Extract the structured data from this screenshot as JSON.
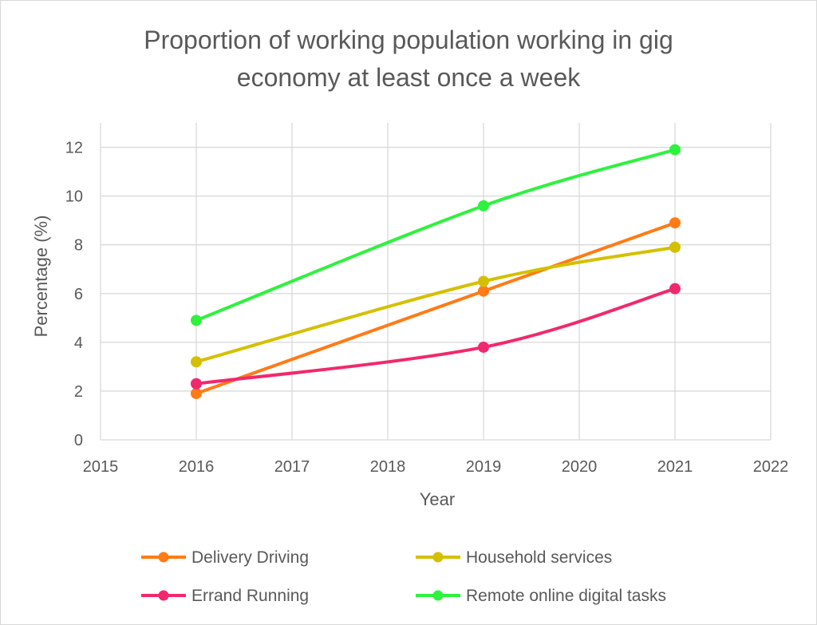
{
  "chart_data": {
    "type": "line",
    "title_lines": [
      "Proportion of working population working in gig",
      "economy at least once a week"
    ],
    "xlabel": "Year",
    "ylabel": "Percentage (%)",
    "xlim": [
      2015,
      2022
    ],
    "ylim": [
      0,
      13
    ],
    "xticks": [
      "2015",
      "2016",
      "2017",
      "2018",
      "2019",
      "2020",
      "2021",
      "2022"
    ],
    "yticks": [
      "0",
      "2",
      "4",
      "6",
      "8",
      "10",
      "12"
    ],
    "grid": true,
    "legend_position": "bottom",
    "series": [
      {
        "name": "Delivery Driving",
        "color": "#ff7b16",
        "x": [
          2016,
          2019,
          2021
        ],
        "y": [
          1.9,
          6.1,
          8.9
        ]
      },
      {
        "name": "Household services",
        "color": "#d4c000",
        "x": [
          2016,
          2019,
          2021
        ],
        "y": [
          3.2,
          6.5,
          7.9
        ]
      },
      {
        "name": "Errand Running",
        "color": "#f2286e",
        "x": [
          2016,
          2019,
          2021
        ],
        "y": [
          2.3,
          3.8,
          6.2
        ]
      },
      {
        "name": "Remote online digital tasks",
        "color": "#2ef23e",
        "x": [
          2016,
          2019,
          2021
        ],
        "y": [
          4.9,
          9.6,
          11.9
        ]
      }
    ]
  }
}
